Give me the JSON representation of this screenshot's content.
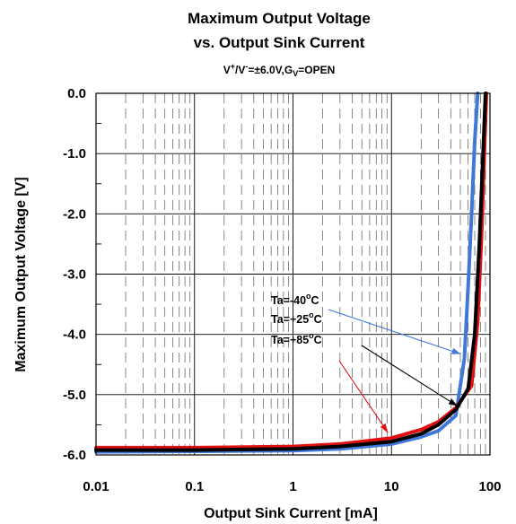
{
  "chart_data": {
    "type": "line",
    "title_line1": "Maximum Output Voltage",
    "title_line2": "vs. Output Sink Current",
    "subtitle": {
      "v1": "V",
      "sup1": "+",
      "slash": "/V",
      "sup2": "-",
      "mid": "=±6.0V,G",
      "sub": "V",
      "end": "=OPEN"
    },
    "xlabel": "Output Sink Current [mA]",
    "ylabel": "Maximum Output Voltage [V]",
    "x_scale": "log",
    "xlim": [
      0.01,
      100
    ],
    "ylim": [
      -6.0,
      0.0
    ],
    "x_ticks": [
      {
        "value": 0.01,
        "label": "0.01"
      },
      {
        "value": 0.1,
        "label": "0.1"
      },
      {
        "value": 1,
        "label": "1"
      },
      {
        "value": 10,
        "label": "10"
      },
      {
        "value": 100,
        "label": "100"
      }
    ],
    "y_ticks": [
      {
        "value": 0,
        "label": "0.0"
      },
      {
        "value": -1,
        "label": "-1.0"
      },
      {
        "value": -2,
        "label": "-2.0"
      },
      {
        "value": -3,
        "label": "-3.0"
      },
      {
        "value": -4,
        "label": "-4.0"
      },
      {
        "value": -5,
        "label": "-5.0"
      },
      {
        "value": -6,
        "label": "-6.0"
      }
    ],
    "grid": true,
    "series": [
      {
        "name": "Ta=-40°C",
        "label_main": "Ta=-40",
        "label_deg": "o",
        "label_unit": "C",
        "color": "#3f78d8",
        "x": [
          0.01,
          0.1,
          1,
          3,
          10,
          20,
          30,
          45,
          55,
          60,
          65,
          70,
          75
        ],
        "y": [
          -5.95,
          -5.94,
          -5.93,
          -5.9,
          -5.82,
          -5.7,
          -5.6,
          -5.35,
          -4.4,
          -3.2,
          -2.0,
          -0.8,
          0.0
        ]
      },
      {
        "name": "Ta=+25°C",
        "label_main": "Ta=+25",
        "label_deg": "o",
        "label_unit": "C",
        "color": "#000000",
        "x": [
          0.01,
          0.1,
          1,
          3,
          10,
          20,
          30,
          45,
          60,
          70,
          78,
          85,
          90
        ],
        "y": [
          -5.92,
          -5.92,
          -5.9,
          -5.86,
          -5.78,
          -5.65,
          -5.5,
          -5.25,
          -4.9,
          -4.0,
          -2.5,
          -1.0,
          0.0
        ]
      },
      {
        "name": "Ta=+85°C",
        "label_main": "Ta=+85",
        "label_deg": "o",
        "label_unit": "C",
        "color": "#e01010",
        "x": [
          0.01,
          0.1,
          1,
          3,
          10,
          20,
          30,
          45,
          65,
          75,
          82,
          88,
          92
        ],
        "y": [
          -5.88,
          -5.88,
          -5.86,
          -5.82,
          -5.72,
          -5.58,
          -5.45,
          -5.22,
          -4.85,
          -3.8,
          -2.4,
          -0.9,
          0.0
        ]
      }
    ]
  }
}
